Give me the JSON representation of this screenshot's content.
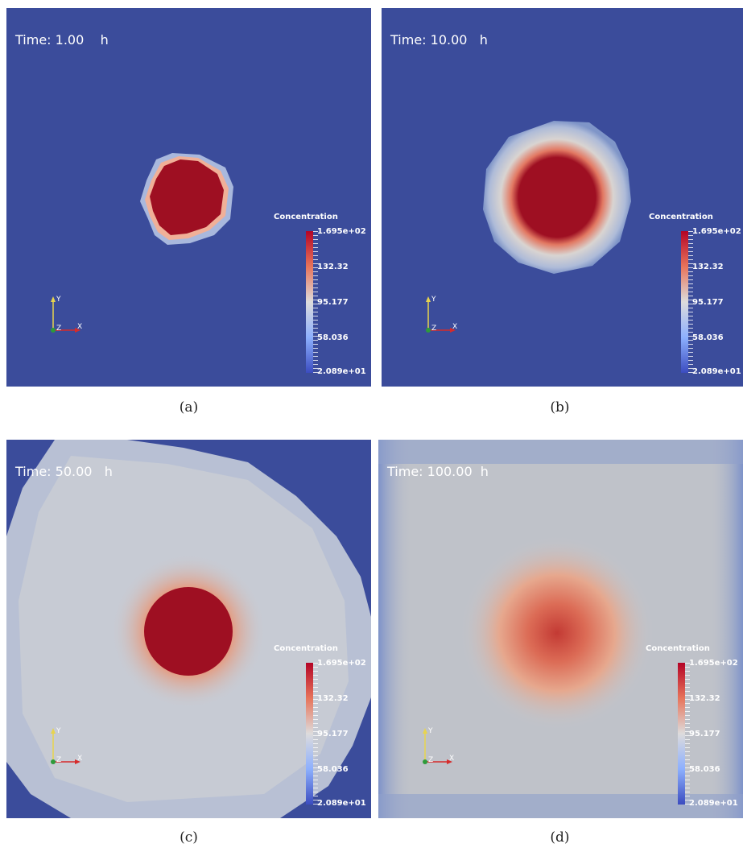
{
  "legend": {
    "title": "Concentration",
    "ticks": [
      "1.695e+02",
      "132.32",
      "95.177",
      "58.036",
      "2.089e+01"
    ]
  },
  "axes_labels": {
    "y": "Y",
    "z": "Z",
    "x": "X"
  },
  "panels": [
    {
      "time": "Time: 1.00    h",
      "caption": "(a)"
    },
    {
      "time": "Time: 10.00   h",
      "caption": "(b)"
    },
    {
      "time": "Time: 50.00   h",
      "caption": "(c)"
    },
    {
      "time": "Time: 100.00  h",
      "caption": "(d)"
    }
  ],
  "colors": {
    "background": "#3b4c9b",
    "high": "#b40426",
    "mid": "#dddcdc",
    "low": "#3b4cc0"
  }
}
